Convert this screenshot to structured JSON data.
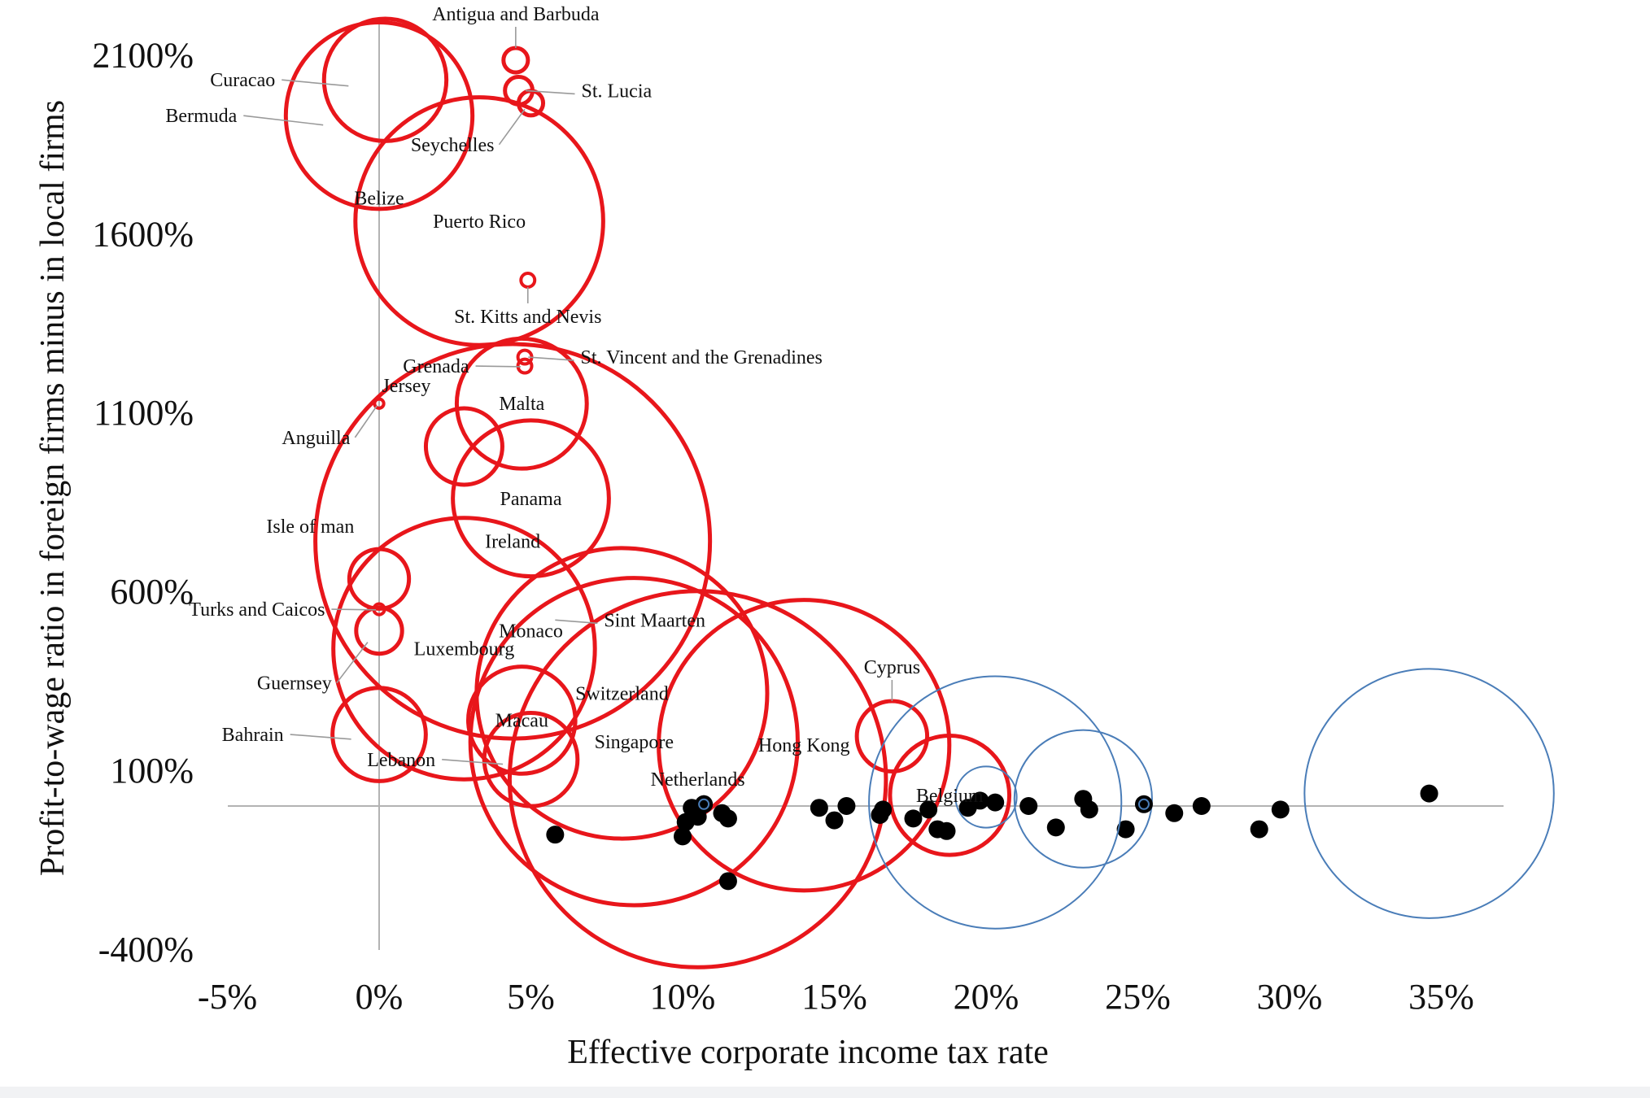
{
  "chart_data": {
    "type": "scatter",
    "xlabel": "Effective corporate income tax rate",
    "ylabel": "Profit-to-wage ratio in foreign firms minus in local firms",
    "xlim": [
      -5,
      37
    ],
    "ylim": [
      -400,
      2230
    ],
    "x_ticks": [
      -5,
      0,
      5,
      10,
      15,
      20,
      25,
      30,
      35
    ],
    "y_ticks": [
      -400,
      100,
      600,
      1100,
      1600,
      2100
    ],
    "grid": false,
    "legend": "none",
    "tick_suffix": "%",
    "colors": {
      "tax_haven": "#e8161b",
      "non_haven": "#000000",
      "highlight": "#4a7db8",
      "zero_line": "#b3b3b3",
      "leader": "#9a9a9a"
    },
    "havens": [
      {
        "name": "Antigua and Barbuda",
        "x": 4.5,
        "y": 2085,
        "size": 1.6,
        "label": "Antigua and Barbuda",
        "label_pos": "above"
      },
      {
        "name": "Curacao",
        "x": 0.2,
        "y": 2030,
        "size": 8,
        "label": "Curacao",
        "label_pos": "left"
      },
      {
        "name": "St. Lucia",
        "x": 4.6,
        "y": 2000,
        "size": 1.8,
        "label": "St. Lucia",
        "label_pos": "right"
      },
      {
        "name": "Seychelles",
        "x": 5.0,
        "y": 1965,
        "size": 1.6,
        "label": "Seychelles",
        "label_pos": "below-left"
      },
      {
        "name": "Bermuda",
        "x": 0.0,
        "y": 1930,
        "size": 12.2,
        "label": "Bermuda",
        "label_pos": "left"
      },
      {
        "name": "Belize",
        "x": 0.0,
        "y": 1700,
        "size": 0,
        "label": "Belize",
        "label_pos": "center"
      },
      {
        "name": "Puerto Rico",
        "x": 3.3,
        "y": 1635,
        "size": 16.2,
        "label": "Puerto Rico",
        "label_pos": "center"
      },
      {
        "name": "St. Kitts and Nevis",
        "x": 4.9,
        "y": 1470,
        "size": 0.9,
        "label": "St. Kitts and Nevis",
        "label_pos": "below"
      },
      {
        "name": "St. Vincent and the Grenadines",
        "x": 4.8,
        "y": 1255,
        "size": 0.9,
        "label": "St. Vincent and the Grenadines",
        "label_pos": "right"
      },
      {
        "name": "Grenada",
        "x": 4.8,
        "y": 1230,
        "size": 0.9,
        "label": "Grenada",
        "label_pos": "left"
      },
      {
        "name": "Malta",
        "x": 4.7,
        "y": 1125,
        "size": 8.5,
        "label": "Malta",
        "label_pos": "center"
      },
      {
        "name": "Anguilla",
        "x": 0.0,
        "y": 1125,
        "size": 0.6,
        "label": "Anguilla",
        "label_pos": "below-left"
      },
      {
        "name": "Jersey",
        "x": 2.8,
        "y": 1005,
        "size": 5.0,
        "label": "Jersey",
        "label_pos": "above-left"
      },
      {
        "name": "Panama",
        "x": 5.0,
        "y": 860,
        "size": 10.2,
        "label": "Panama",
        "label_pos": "center"
      },
      {
        "name": "Ireland",
        "x": 4.4,
        "y": 740,
        "size": 25.8,
        "label": "Ireland",
        "label_pos": "center"
      },
      {
        "name": "Isle of man",
        "x": 0.0,
        "y": 635,
        "size": 3.9,
        "label": "Isle of man",
        "label_pos": "above-left"
      },
      {
        "name": "Turks and Caicos",
        "x": 0.0,
        "y": 550,
        "size": 0.7,
        "label": "Turks and Caicos",
        "label_pos": "left"
      },
      {
        "name": "Guernsey",
        "x": 0.0,
        "y": 490,
        "size": 3.0,
        "label": "Guernsey",
        "label_pos": "below-left"
      },
      {
        "name": "Sint Maarten",
        "x": 5.8,
        "y": 520,
        "size": 0,
        "label": "Sint Maarten",
        "label_pos": "right"
      },
      {
        "name": "Monaco",
        "x": 5.0,
        "y": 490,
        "size": 0,
        "label": "Monaco",
        "label_pos": "center"
      },
      {
        "name": "Luxembourg",
        "x": 2.8,
        "y": 440,
        "size": 17.1,
        "label": "Luxembourg",
        "label_pos": "center"
      },
      {
        "name": "Switzerland",
        "x": 8.0,
        "y": 315,
        "size": 19.0,
        "label": "Switzerland",
        "label_pos": "center"
      },
      {
        "name": "Macau",
        "x": 4.7,
        "y": 240,
        "size": 7.0,
        "label": "Macau",
        "label_pos": "center"
      },
      {
        "name": "Bahrain",
        "x": 0.0,
        "y": 200,
        "size": 6.1,
        "label": "Bahrain",
        "label_pos": "left"
      },
      {
        "name": "Singapore",
        "x": 8.4,
        "y": 180,
        "size": 21.4,
        "label": "Singapore",
        "label_pos": "center"
      },
      {
        "name": "Hong Kong",
        "x": 14.0,
        "y": 170,
        "size": 19.0,
        "label": "Hong Kong",
        "label_pos": "center"
      },
      {
        "name": "Cyprus",
        "x": 16.9,
        "y": 195,
        "size": 4.6,
        "label": "Cyprus",
        "label_pos": "above"
      },
      {
        "name": "Lebanon",
        "x": 5.0,
        "y": 130,
        "size": 6.1,
        "label": "Lebanon",
        "label_pos": "left"
      },
      {
        "name": "Netherlands",
        "x": 10.5,
        "y": 75,
        "size": 24.6,
        "label": "Netherlands",
        "label_pos": "center"
      },
      {
        "name": "Belgium",
        "x": 18.8,
        "y": 30,
        "size": 7.8,
        "label": "Belgium",
        "label_pos": "center"
      }
    ],
    "others": [
      {
        "x": 5.8,
        "y": -80
      },
      {
        "x": 10.0,
        "y": -85
      },
      {
        "x": 10.1,
        "y": -45
      },
      {
        "x": 10.3,
        "y": -5
      },
      {
        "x": 10.5,
        "y": -30
      },
      {
        "x": 10.7,
        "y": 5
      },
      {
        "x": 11.3,
        "y": -20
      },
      {
        "x": 11.5,
        "y": -35
      },
      {
        "x": 11.5,
        "y": -210
      },
      {
        "x": 14.5,
        "y": -5
      },
      {
        "x": 15.0,
        "y": -40
      },
      {
        "x": 15.4,
        "y": 0
      },
      {
        "x": 16.5,
        "y": -25
      },
      {
        "x": 16.6,
        "y": -10
      },
      {
        "x": 17.6,
        "y": -35
      },
      {
        "x": 18.1,
        "y": -10
      },
      {
        "x": 18.4,
        "y": -65
      },
      {
        "x": 18.7,
        "y": -70
      },
      {
        "x": 19.4,
        "y": -5
      },
      {
        "x": 19.8,
        "y": 15
      },
      {
        "x": 20.3,
        "y": 10
      },
      {
        "x": 21.4,
        "y": 0
      },
      {
        "x": 22.3,
        "y": -60
      },
      {
        "x": 23.2,
        "y": 20
      },
      {
        "x": 23.4,
        "y": -10
      },
      {
        "x": 24.6,
        "y": -65
      },
      {
        "x": 26.2,
        "y": -20
      },
      {
        "x": 27.1,
        "y": 0
      },
      {
        "x": 29.0,
        "y": -65
      },
      {
        "x": 29.7,
        "y": -10
      },
      {
        "x": 34.6,
        "y": 35
      }
    ],
    "highlighted": [
      {
        "x": 10.7,
        "y": 5,
        "size": 1.4,
        "dot": true
      },
      {
        "x": 20.3,
        "y": 10,
        "size": 16.5,
        "dot": false
      },
      {
        "x": 20.0,
        "y": 25,
        "size": 4.0,
        "dot": false
      },
      {
        "x": 23.2,
        "y": 20,
        "size": 9.0,
        "dot": false
      },
      {
        "x": 25.2,
        "y": 5,
        "size": 1.6,
        "dot": true
      },
      {
        "x": 34.6,
        "y": 35,
        "size": 16.3,
        "dot": false
      }
    ]
  }
}
